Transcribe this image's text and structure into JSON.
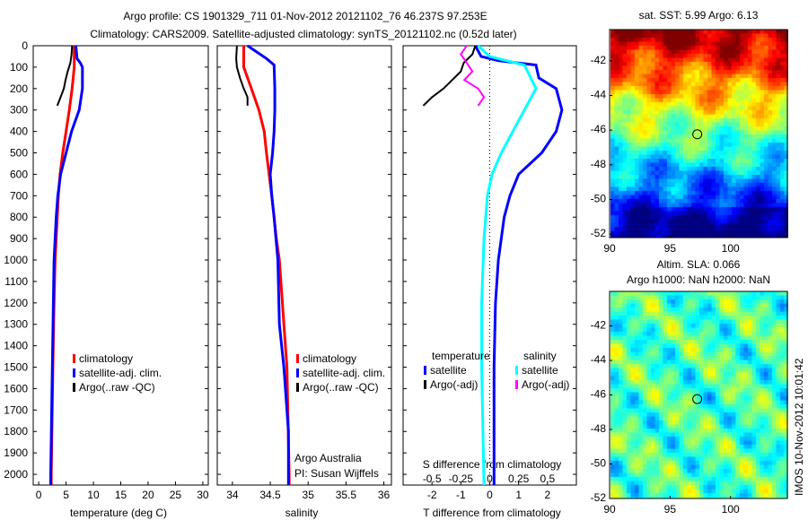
{
  "title_line1": "Argo profile: CS 1901329_711 01-Nov-2012 20121102_76 46.237S 97.253E",
  "title_line2": "Climatology: CARS2009. Satellite-adjusted climatology: synTS_20121102.nc (0.52d later)",
  "colors": {
    "climatology": "#ff0000",
    "satellite": "#0000ff",
    "argo": "#000000",
    "sal_satellite": "#00ffff",
    "sal_argo": "#ff00ff"
  },
  "chart_data": [
    {
      "type": "line",
      "id": "temperature",
      "xlabel": "temperature (deg C)",
      "ylabel": "depth",
      "xlim": [
        -1,
        31
      ],
      "ylim": [
        2050,
        0
      ],
      "xticks": [
        "0",
        "5",
        "10",
        "15",
        "20",
        "25",
        "30"
      ],
      "xtickvals": [
        0,
        5,
        10,
        15,
        20,
        25,
        30
      ],
      "yticks": [
        0,
        100,
        200,
        300,
        400,
        500,
        600,
        700,
        800,
        900,
        1000,
        1100,
        1200,
        1300,
        1400,
        1500,
        1600,
        1700,
        1800,
        1900,
        2000
      ],
      "legend": [
        "climatology",
        "satellite-adj. clim.",
        "Argo(..raw -QC)"
      ],
      "series": [
        {
          "name": "climatology",
          "color": "#ff0000",
          "depth": [
            0,
            100,
            200,
            300,
            400,
            500,
            600,
            700,
            800,
            900,
            1000,
            1200,
            1500,
            2000,
            2050
          ],
          "values": [
            6.5,
            6.5,
            6.1,
            5.6,
            5,
            4.4,
            3.9,
            3.6,
            3.4,
            3.2,
            3,
            2.8,
            2.6,
            2.3,
            2.3
          ]
        },
        {
          "name": "satellite-adj. clim.",
          "color": "#0000ff",
          "depth": [
            0,
            60,
            80,
            100,
            200,
            300,
            400,
            500,
            600,
            700,
            800,
            1000,
            1500,
            2000,
            2050
          ],
          "values": [
            6.8,
            7,
            7.6,
            8,
            8,
            7.4,
            6,
            5,
            4,
            3.5,
            3.2,
            2.8,
            2.5,
            2.2,
            2.2
          ]
        },
        {
          "name": "Argo(..raw -QC)",
          "color": "#000000",
          "depth": [
            0,
            40,
            80,
            120,
            160,
            200,
            240,
            280
          ],
          "values": [
            6.1,
            6,
            5.8,
            5.3,
            4.9,
            4.6,
            4,
            3.4
          ]
        }
      ]
    },
    {
      "type": "line",
      "id": "salinity",
      "xlabel": "salinity",
      "ylabel": "depth",
      "xlim": [
        33.8,
        36.1
      ],
      "ylim": [
        2050,
        0
      ],
      "xticks": [
        "34",
        "34.5",
        "35",
        "35.5",
        "36"
      ],
      "xtickvals": [
        34,
        34.5,
        35,
        35.5,
        36
      ],
      "legend": [
        "climatology",
        "satellite-adj. clim.",
        "Argo(..raw -QC)"
      ],
      "annotations": [
        "Argo Australia",
        "PI: Susan Wijffels"
      ],
      "series": [
        {
          "name": "climatology",
          "color": "#ff0000",
          "depth": [
            0,
            100,
            200,
            300,
            400,
            500,
            700,
            800,
            900,
            1000,
            1300,
            1500,
            2000,
            2050
          ],
          "values": [
            34.15,
            34.15,
            34.25,
            34.35,
            34.42,
            34.45,
            34.52,
            34.55,
            34.58,
            34.62,
            34.68,
            34.72,
            34.75,
            34.75
          ]
        },
        {
          "name": "satellite-adj. clim.",
          "color": "#0000ff",
          "depth": [
            0,
            60,
            90,
            200,
            300,
            400,
            500,
            600,
            700,
            800,
            1000,
            1300,
            1500,
            1800,
            2050
          ],
          "values": [
            34.2,
            34.45,
            34.55,
            34.56,
            34.56,
            34.55,
            34.53,
            34.5,
            34.52,
            34.55,
            34.6,
            34.62,
            34.68,
            34.74,
            34.74
          ]
        },
        {
          "name": "Argo(..raw -QC)",
          "color": "#000000",
          "depth": [
            0,
            60,
            100,
            150,
            200,
            240,
            280
          ],
          "values": [
            34.06,
            34.05,
            34.06,
            34.1,
            34.15,
            34.2,
            34.2
          ]
        }
      ]
    },
    {
      "type": "line",
      "id": "difference",
      "xlabel": "T difference from climatology",
      "x2label": "S difference from climatology",
      "xlim": [
        -3,
        3
      ],
      "x2lim": [
        -0.75,
        0.75
      ],
      "ylim": [
        2050,
        0
      ],
      "xticks": [
        "-2",
        "-1",
        "0",
        "1",
        "2"
      ],
      "xtickvals": [
        -2,
        -1,
        0,
        1,
        2
      ],
      "x2ticks": [
        "-0.5",
        "-0.25",
        "0",
        "0.25",
        "0.5"
      ],
      "x2tickvals": [
        -0.5,
        -0.25,
        0,
        0.25,
        0.5
      ],
      "legend_headers": [
        "temperature",
        "salinity"
      ],
      "legend": [
        "satellite",
        "Argo(-adj)",
        "satellite",
        "Argo(-adj)"
      ],
      "series": [
        {
          "name": "T satellite",
          "axis": "T",
          "color": "#0000ff",
          "depth": [
            0,
            50,
            70,
            90,
            150,
            200,
            300,
            400,
            500,
            600,
            700,
            800,
            1000,
            1200,
            1500,
            2050
          ],
          "values": [
            -0.5,
            -0.3,
            0.3,
            1.6,
            1.7,
            2.3,
            2.5,
            2.3,
            1.8,
            1.0,
            0.7,
            0.5,
            0.3,
            0.2,
            0.15,
            0.15
          ]
        },
        {
          "name": "T Argo(-adj)",
          "axis": "T",
          "color": "#000000",
          "depth": [
            0,
            40,
            80,
            120,
            160,
            200,
            240,
            280
          ],
          "values": [
            -0.5,
            -0.6,
            -0.9,
            -1.0,
            -1.3,
            -1.6,
            -2.0,
            -2.3
          ]
        },
        {
          "name": "S satellite",
          "axis": "S",
          "color": "#00ffff",
          "depth": [
            0,
            50,
            90,
            200,
            300,
            400,
            500,
            600,
            700,
            900,
            1200,
            1500,
            2050
          ],
          "values": [
            -0.1,
            0,
            0.3,
            0.4,
            0.3,
            0.2,
            0.1,
            0.02,
            -0.02,
            -0.05,
            -0.07,
            -0.07,
            -0.05
          ]
        },
        {
          "name": "S Argo(-adj)",
          "axis": "S",
          "color": "#ff00ff",
          "depth": [
            0,
            40,
            80,
            120,
            160,
            200,
            240,
            280
          ],
          "values": [
            -0.2,
            -0.25,
            -0.2,
            -0.15,
            -0.22,
            -0.1,
            -0.05,
            -0.1
          ]
        }
      ]
    },
    {
      "type": "heatmap",
      "id": "sst_map",
      "title": "sat. SST: 5.99 Argo: 6.13",
      "xlim": [
        90,
        104.7
      ],
      "ylim": [
        -52.2,
        -40.2
      ],
      "xticks": [
        "90",
        "95",
        "100"
      ],
      "xtickvals": [
        90,
        95,
        100
      ],
      "yticks": [
        "-42",
        "-44",
        "-46",
        "-48",
        "-50",
        "-52"
      ],
      "ytickvals": [
        -42,
        -44,
        -46,
        -48,
        -50,
        -52
      ],
      "marker": {
        "lon": 97.25,
        "lat": -46.24
      }
    },
    {
      "type": "heatmap",
      "id": "sla_map",
      "title": "Altim. SLA: 0.066",
      "subtitle": "Argo h1000: NaN h2000: NaN",
      "xlim": [
        90,
        104.7
      ],
      "ylim": [
        -52,
        -40
      ],
      "xticks": [
        "90",
        "95",
        "100"
      ],
      "xtickvals": [
        90,
        95,
        100
      ],
      "yticks": [
        "-42",
        "-44",
        "-46",
        "-48",
        "-50",
        "-52"
      ],
      "ytickvals": [
        -42,
        -44,
        -46,
        -48,
        -50,
        -52
      ],
      "marker": {
        "lon": 97.25,
        "lat": -46.24
      }
    }
  ],
  "timestamp": "IMOS 10-Nov-2012 10:01:42"
}
